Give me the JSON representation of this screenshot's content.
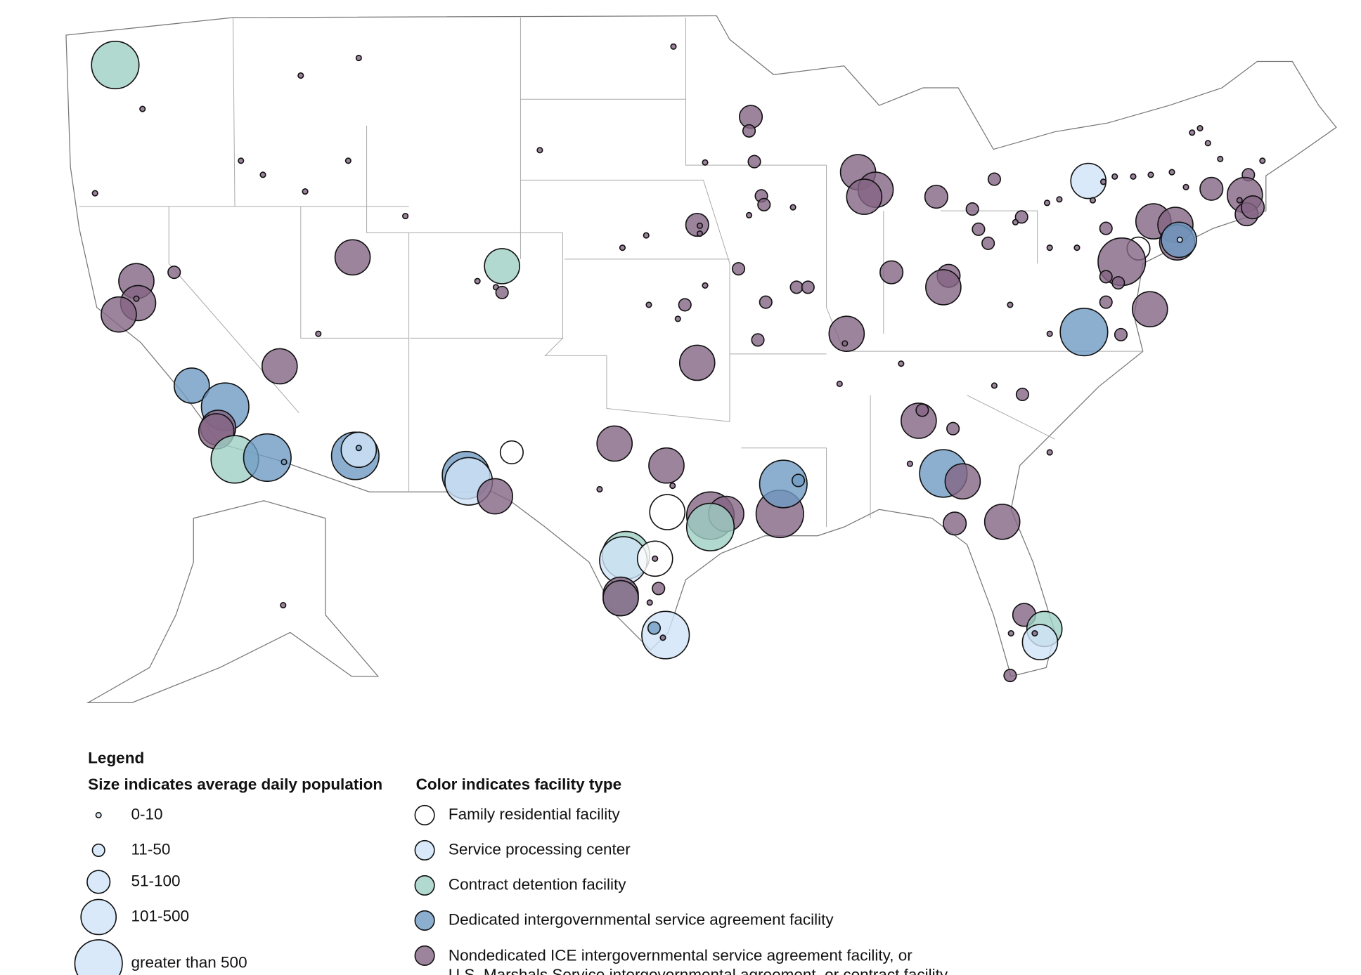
{
  "legend": {
    "title": "Legend",
    "size": {
      "heading": "Size indicates average daily population",
      "items": [
        "0-10",
        "11-50",
        "51-100",
        "101-500",
        "greater than 500"
      ]
    },
    "color": {
      "heading": "Color indicates facility type",
      "items": [
        "Family residential facility",
        "Service processing center",
        "Contract detention facility",
        "Dedicated intergovernmental service agreement facility",
        [
          "Nondedicated ICE intergovernmental service agreement facility, or",
          "U.S. Marshals Service intergovernmental agreement, or contract facility"
        ]
      ]
    }
  }
}
